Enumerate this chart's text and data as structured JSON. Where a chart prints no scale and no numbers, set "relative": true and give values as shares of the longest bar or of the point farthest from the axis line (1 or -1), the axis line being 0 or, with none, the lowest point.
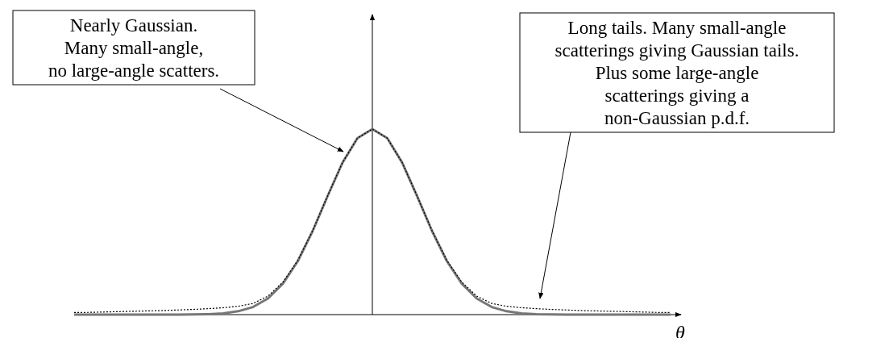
{
  "chart_data": {
    "type": "line",
    "relative": true,
    "xlabel": "θ",
    "categories": [
      null,
      null,
      null,
      null,
      null,
      null,
      null,
      null,
      null,
      null,
      null,
      null,
      null,
      null,
      null,
      null,
      null,
      null,
      null,
      null,
      null,
      null,
      null,
      null,
      null,
      null,
      null,
      null,
      null,
      null,
      null,
      null,
      null,
      null,
      null,
      null,
      null,
      null,
      null,
      null,
      null
    ],
    "series": [
      {
        "color": "#777777",
        "line_style": "solid",
        "values": [
          0,
          0,
          0,
          0,
          0,
          0,
          0,
          0,
          0.0008,
          0.0024,
          0.007,
          0.018,
          0.041,
          0.087,
          0.167,
          0.288,
          0.451,
          0.639,
          0.819,
          0.951,
          1,
          0.951,
          0.819,
          0.639,
          0.451,
          0.288,
          0.167,
          0.087,
          0.041,
          0.018,
          0.007,
          0.0024,
          0.0008,
          0,
          0,
          0,
          0,
          0,
          0,
          0,
          0
        ]
      },
      {
        "color": "#000000",
        "line_style": "dotted",
        "values": [
          0.011,
          0.012,
          0.014,
          0.016,
          0.018,
          0.02,
          0.022,
          0.025,
          0.028,
          0.032,
          0.037,
          0.045,
          0.06,
          0.1,
          0.175,
          0.292,
          0.453,
          0.64,
          0.82,
          0.951,
          1,
          0.951,
          0.82,
          0.64,
          0.453,
          0.292,
          0.175,
          0.1,
          0.06,
          0.045,
          0.037,
          0.032,
          0.028,
          0.025,
          0.022,
          0.02,
          0.018,
          0.016,
          0.014,
          0.012,
          0.011
        ]
      }
    ],
    "annotations": [
      "Nearly Gaussian.\nMany small-angle,\nno large-angle scatters.",
      "Long tails. Many small-angle\nscatterings giving Gaussian tails.\nPlus some large-angle\nscatterings giving a\nnon-Gaussian p.d.f."
    ]
  }
}
